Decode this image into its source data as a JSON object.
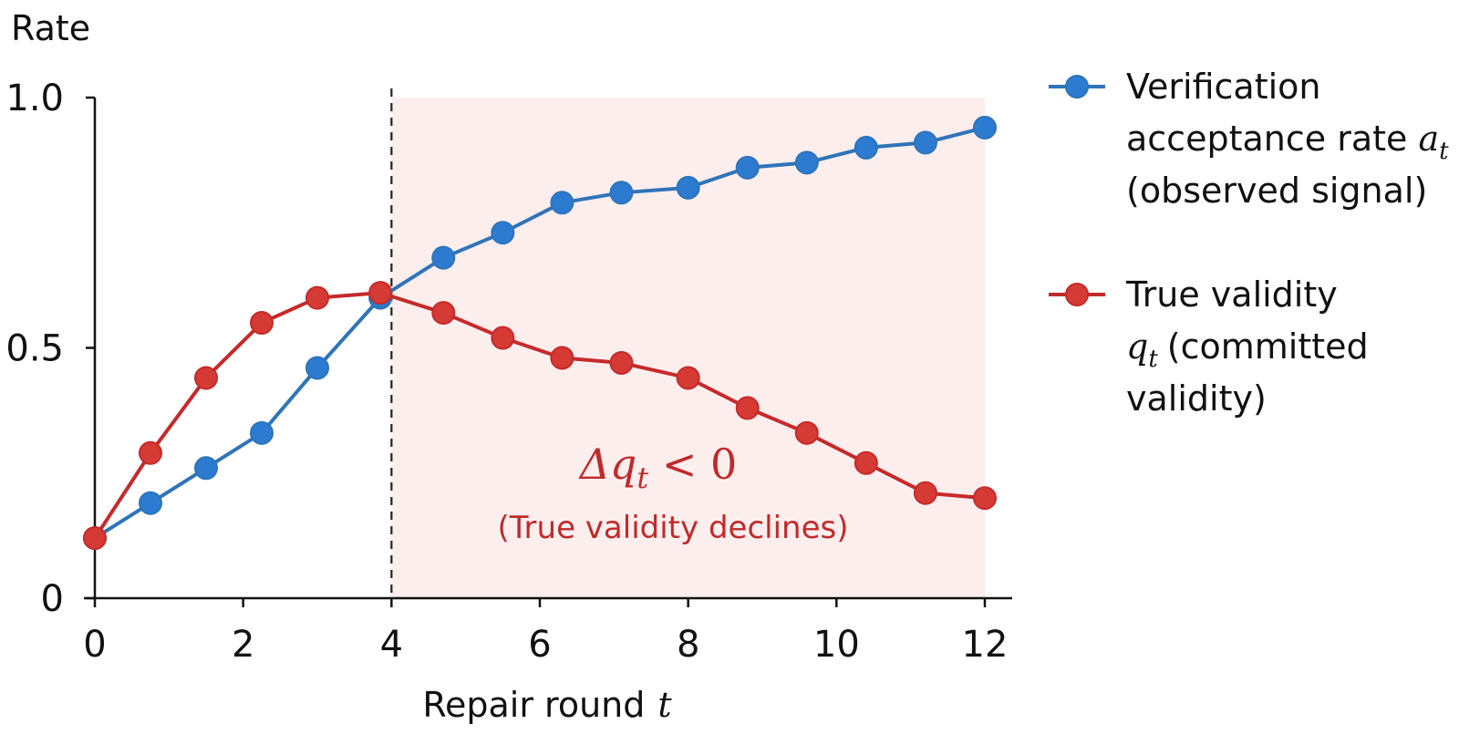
{
  "chart_data": {
    "type": "line",
    "ylabel": "Rate",
    "xlabel": "Repair round",
    "xlabel_symbol": "t",
    "xlim": [
      0,
      12
    ],
    "ylim": [
      0,
      1
    ],
    "x_ticks": [
      "0",
      "2",
      "4",
      "6",
      "8",
      "10",
      "12"
    ],
    "y_ticks": [
      "0",
      "0.5",
      "1.0"
    ],
    "grid": false,
    "legend_position": "right",
    "threshold_x": 4,
    "shaded_region": [
      4,
      12
    ],
    "series": [
      {
        "name": "Verification acceptance rate a_t (observed signal)",
        "color": "#2f74b8",
        "marker_color": "#2c7bd1",
        "legend_lines": [
          "Verification",
          "acceptance rate",
          "(observed signal)"
        ],
        "legend_symbol": "a",
        "legend_symbol_sub": "t",
        "x": [
          0,
          0.75,
          1.5,
          2.25,
          3.0,
          3.85,
          4.7,
          5.5,
          6.3,
          7.1,
          8.0,
          8.8,
          9.6,
          10.4,
          11.2,
          12.0
        ],
        "y": [
          0.12,
          0.19,
          0.26,
          0.33,
          0.46,
          0.6,
          0.68,
          0.73,
          0.79,
          0.81,
          0.82,
          0.86,
          0.87,
          0.9,
          0.91,
          0.94
        ]
      },
      {
        "name": "True validity q_t (committed validity)",
        "color": "#c52a2a",
        "marker_color": "#d63a35",
        "legend_lines": [
          "True validity",
          "(committed",
          "validity)"
        ],
        "legend_symbol": "q",
        "legend_symbol_sub": "t",
        "x": [
          0,
          0.75,
          1.5,
          2.25,
          3.0,
          3.85,
          4.7,
          5.5,
          6.3,
          7.1,
          8.0,
          8.8,
          9.6,
          10.4,
          11.2,
          12.0
        ],
        "y": [
          0.12,
          0.29,
          0.44,
          0.55,
          0.6,
          0.61,
          0.57,
          0.52,
          0.48,
          0.47,
          0.44,
          0.38,
          0.33,
          0.27,
          0.21,
          0.2
        ]
      }
    ],
    "annotation": {
      "main_symbol": "Δq",
      "main_sub": "t",
      "main_rest": " < 0",
      "sub": "(True validity declines)",
      "color": "#c02a2a"
    },
    "shade_color": "#fdeeee"
  }
}
